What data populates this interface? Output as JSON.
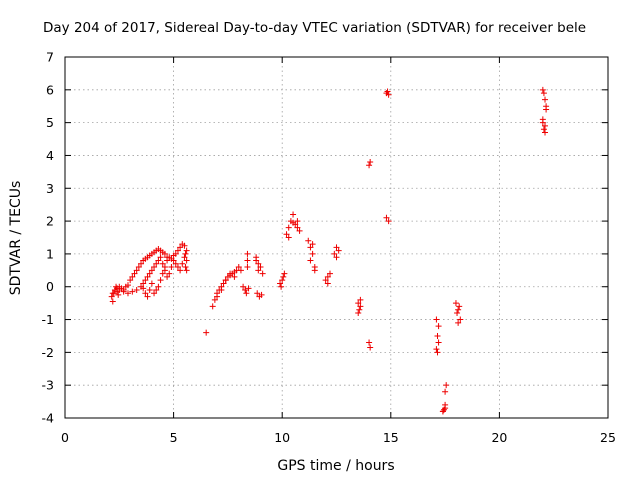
{
  "chart_data": {
    "type": "scatter",
    "title": "Day 204 of 2017, Sidereal Day-to-day VTEC variation (SDTVAR) for receiver bele",
    "xlabel": "GPS time / hours",
    "ylabel": "SDTVAR / TECUs",
    "xlim": [
      0,
      25
    ],
    "ylim": [
      -4,
      7
    ],
    "xticks": [
      "0",
      "5",
      "10",
      "15",
      "20",
      "25"
    ],
    "yticks": [
      "-4",
      "-3",
      "-2",
      "-1",
      "0",
      "1",
      "2",
      "3",
      "4",
      "5",
      "6",
      "7"
    ],
    "grid": true,
    "marker": "plus",
    "color": "#ee0000",
    "series": [
      {
        "x": [
          2.15,
          2.2,
          2.25,
          2.3,
          2.35,
          2.4,
          2.45,
          2.5,
          2.6,
          2.7,
          2.8,
          2.9,
          3.0,
          3.1,
          3.2,
          3.3,
          3.4,
          3.5,
          3.6,
          3.7,
          3.8,
          3.9,
          4.0,
          4.1,
          4.2,
          4.3,
          4.4,
          4.5,
          4.6,
          4.7,
          2.2,
          2.3,
          2.4,
          2.5,
          2.7,
          2.9,
          3.1,
          3.3,
          3.5,
          3.6,
          3.7,
          3.8,
          3.9,
          4.0,
          4.1,
          4.2,
          4.3,
          4.4,
          4.5,
          4.6,
          4.7,
          4.8,
          4.9,
          5.0,
          5.1,
          5.2,
          5.3,
          5.4,
          5.5,
          5.6,
          3.6,
          3.7,
          3.8,
          3.9,
          4.0,
          4.1,
          4.2,
          4.3,
          4.4,
          4.5,
          4.6,
          4.7,
          4.8,
          4.9,
          5.0,
          5.1,
          5.2,
          5.3,
          5.4,
          5.5,
          5.55,
          5.6,
          5.6,
          5.55,
          6.5,
          6.8,
          6.9,
          7.0,
          7.1,
          7.2,
          7.3,
          7.4,
          7.5,
          7.6,
          7.7,
          7.8,
          7.9,
          7.0,
          7.2,
          7.4,
          7.6,
          7.8,
          8.0,
          8.1,
          8.2,
          8.3,
          8.4,
          8.4,
          8.4,
          8.45,
          8.35,
          8.3,
          8.8,
          8.9,
          9.0,
          9.1,
          8.85,
          8.95,
          9.05,
          8.8,
          8.9,
          9.9,
          10.0,
          10.1,
          9.95,
          10.05,
          10.2,
          10.3,
          10.4,
          10.5,
          10.6,
          10.7,
          10.8,
          10.3,
          10.5,
          10.7,
          11.2,
          11.3,
          11.4,
          11.5,
          11.3,
          11.5,
          11.4,
          12.0,
          12.1,
          12.2,
          12.1,
          12.4,
          12.5,
          12.6,
          12.5,
          13.5,
          13.6,
          13.55,
          13.5,
          13.6,
          14.0,
          14.05,
          14.0,
          14.05,
          14.8,
          14.9,
          14.85,
          14.8,
          14.9,
          17.1,
          17.2,
          17.15,
          17.2,
          17.1,
          17.15,
          17.4,
          17.5,
          17.45,
          17.5,
          17.4,
          17.5,
          17.55,
          18.0,
          18.1,
          18.05,
          18.2,
          18.1,
          18.15,
          22.0,
          22.05,
          22.1,
          22.15,
          22.0,
          22.05,
          22.1,
          22.1,
          22.0,
          22.15
        ],
        "y": [
          -0.3,
          -0.45,
          -0.2,
          -0.1,
          0.0,
          -0.15,
          -0.25,
          -0.1,
          -0.05,
          -0.15,
          0.0,
          0.05,
          0.2,
          0.3,
          0.4,
          0.5,
          0.6,
          0.7,
          0.8,
          0.85,
          0.9,
          0.95,
          1.0,
          1.05,
          1.1,
          1.15,
          1.1,
          1.05,
          1.0,
          0.9,
          -0.2,
          -0.1,
          -0.05,
          0.0,
          -0.1,
          -0.2,
          -0.15,
          -0.1,
          0.0,
          0.1,
          0.2,
          0.3,
          0.4,
          0.5,
          0.6,
          0.7,
          0.8,
          0.9,
          0.7,
          0.6,
          0.8,
          0.9,
          0.85,
          0.95,
          1.0,
          1.1,
          1.2,
          1.3,
          1.25,
          1.1,
          -0.05,
          -0.2,
          -0.3,
          -0.1,
          0.1,
          -0.2,
          -0.1,
          0.0,
          0.2,
          0.4,
          0.5,
          0.3,
          0.4,
          0.6,
          0.8,
          0.7,
          0.6,
          0.5,
          0.7,
          0.9,
          0.6,
          0.5,
          0.8,
          1.0,
          -1.4,
          -0.6,
          -0.4,
          -0.2,
          -0.1,
          0.0,
          0.1,
          0.2,
          0.3,
          0.35,
          0.4,
          0.45,
          0.5,
          -0.3,
          -0.1,
          0.2,
          0.4,
          0.3,
          0.6,
          0.5,
          0.0,
          -0.1,
          0.8,
          1.0,
          0.6,
          -0.05,
          -0.2,
          -0.1,
          0.9,
          0.7,
          0.6,
          0.4,
          -0.2,
          -0.3,
          -0.25,
          0.8,
          0.5,
          0.1,
          0.2,
          0.4,
          0.0,
          0.3,
          1.6,
          1.8,
          2.0,
          2.2,
          1.9,
          2.0,
          1.7,
          1.5,
          1.95,
          1.8,
          1.4,
          1.2,
          1.0,
          0.6,
          0.8,
          0.5,
          1.3,
          0.2,
          0.3,
          0.4,
          0.1,
          1.0,
          1.2,
          1.1,
          0.9,
          -0.5,
          -0.4,
          -0.7,
          -0.8,
          -0.6,
          -1.7,
          -1.85,
          3.7,
          3.8,
          5.9,
          5.85,
          5.95,
          2.1,
          2.0,
          -1.0,
          -1.2,
          -1.5,
          -1.7,
          -1.9,
          -2.0,
          -3.8,
          -3.7,
          -3.75,
          -3.6,
          -3.8,
          -3.2,
          -3.0,
          -0.5,
          -0.7,
          -0.8,
          -1.0,
          -1.1,
          -0.6,
          6.0,
          5.9,
          5.7,
          5.5,
          5.0,
          4.8,
          4.9,
          4.7,
          5.1,
          5.4
        ]
      }
    ]
  }
}
